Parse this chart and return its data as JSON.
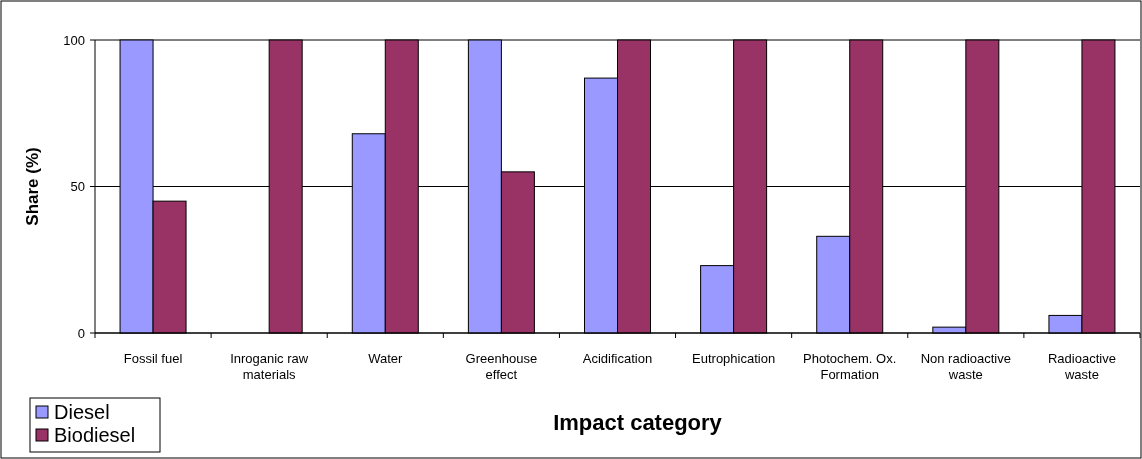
{
  "chart_data": {
    "type": "bar",
    "xlabel": "Impact category",
    "ylabel": "Share (%)",
    "categories": [
      "Fossil fuel",
      "Inroganic raw materials",
      "Water",
      "Greenhouse effect",
      "Acidification",
      "Eutrophication",
      "Photochem. Ox. Formation",
      "Non radioactive waste",
      "Radioactive waste"
    ],
    "series": [
      {
        "name": "Diesel",
        "color": "#9999ff",
        "values": [
          100,
          0,
          68,
          100,
          87,
          23,
          33,
          2,
          6
        ]
      },
      {
        "name": "Biodiesel",
        "color": "#993366",
        "values": [
          45,
          100,
          100,
          55,
          100,
          100,
          100,
          100,
          100
        ]
      }
    ],
    "ylim": [
      0,
      100
    ],
    "yticks": [
      0,
      50,
      100
    ],
    "grid": "y",
    "legend": "bottom left"
  }
}
